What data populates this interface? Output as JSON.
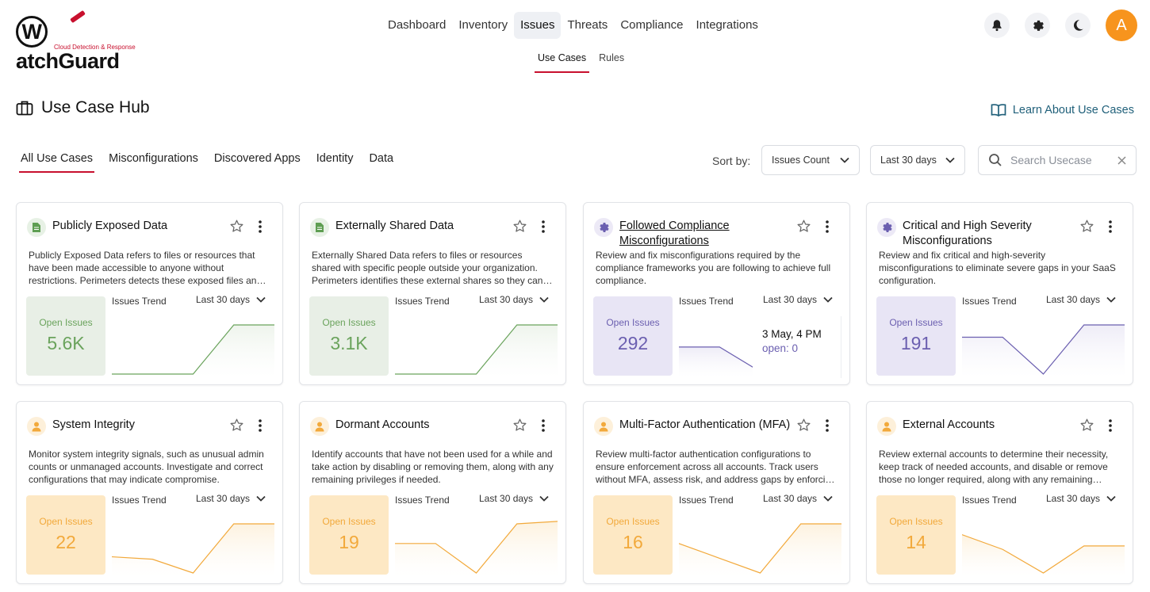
{
  "brand": {
    "name": "WatchGuard",
    "letter": "W",
    "rest": "atchGuard",
    "tagline": "Cloud Detection & Response"
  },
  "topnav": [
    {
      "label": "Dashboard",
      "active": false
    },
    {
      "label": "Inventory",
      "active": false
    },
    {
      "label": "Issues",
      "active": true
    },
    {
      "label": "Threats",
      "active": false
    },
    {
      "label": "Compliance",
      "active": false
    },
    {
      "label": "Integrations",
      "active": false
    }
  ],
  "header_icons": [
    "bell-icon",
    "gear-icon",
    "moon-icon"
  ],
  "user": {
    "avatar_initial": "A",
    "avatar_color": "#f7941d"
  },
  "subnav": [
    {
      "label": "Use Cases",
      "active": true
    },
    {
      "label": "Rules",
      "active": false
    }
  ],
  "page": {
    "title": "Use Case Hub",
    "learn_link": "Learn About Use Cases"
  },
  "tabs": [
    {
      "label": "All Use Cases",
      "active": true
    },
    {
      "label": "Misconfigurations",
      "active": false
    },
    {
      "label": "Discovered Apps",
      "active": false
    },
    {
      "label": "Identity",
      "active": false
    },
    {
      "label": "Data",
      "active": false
    }
  ],
  "filters": {
    "sort_label": "Sort by:",
    "sort_value": "Issues Count",
    "range_value": "Last 30 days",
    "search_placeholder": "Search Usecase"
  },
  "colors": {
    "accent": "#c8102e",
    "data_theme": {
      "bg": "#e8efe6",
      "text": "#6aa35c",
      "line": "#6aa35c",
      "fill": "#eef4ec",
      "icon": "#5e9e52",
      "icon_bg": "#e7f1e5"
    },
    "misconfig_theme": {
      "bg": "#e8e5f5",
      "text": "#6b5fb0",
      "line": "#6b5fb0",
      "fill": "#eeecf7",
      "icon": "#6b5fb0",
      "icon_bg": "#ece9f6"
    },
    "identity_theme": {
      "bg": "#fde8c4",
      "text": "#f2a93b",
      "line": "#f2a93b",
      "fill": "#fdf2df",
      "icon": "#f2a93b",
      "icon_bg": "#fdf0da"
    }
  },
  "cards": [
    {
      "title": "Publicly Exposed Data",
      "icon": "document-icon",
      "theme": "data_theme",
      "link": false,
      "description": "Publicly Exposed Data refers to files or resources that have been made accessible to anyone without restrictions. Perimeters detects these exposed files and helps you remediate them.",
      "open_label": "Open Issues",
      "open_value": "5.6K",
      "trend_label": "Issues Trend",
      "trend_range": "Last 30 days",
      "trend": [
        0.0,
        0.0,
        0.0,
        1.0,
        1.0
      ]
    },
    {
      "title": "Externally Shared Data",
      "icon": "document-icon",
      "theme": "data_theme",
      "link": false,
      "description": "Externally Shared Data refers to files or resources shared with specific people outside your organization. Perimeters identifies these external shares so they can be reviewed.",
      "open_label": "Open Issues",
      "open_value": "3.1K",
      "trend_label": "Issues Trend",
      "trend_range": "Last 30 days",
      "trend": [
        0.0,
        0.0,
        0.0,
        1.0,
        1.0
      ]
    },
    {
      "title": "Followed Compliance Misconfigurations",
      "icon": "gear-icon",
      "theme": "misconfig_theme",
      "link": true,
      "description": "Review and fix misconfigurations required by the compliance frameworks you are following to achieve full compliance.",
      "open_label": "Open Issues",
      "open_value": "292",
      "trend_label": "Issues Trend",
      "trend_range": "Last 30 days",
      "trend": [
        0.55,
        0.55,
        0.05,
        0.0,
        0.15
      ],
      "tooltip": {
        "date": "3 May, 4 PM",
        "label": "open: 0"
      }
    },
    {
      "title": "Critical and High Severity Misconfigurations",
      "icon": "gear-icon",
      "theme": "misconfig_theme",
      "link": false,
      "description": "Review and fix critical and high-severity misconfigurations to eliminate severe gaps in your SaaS configuration.",
      "open_label": "Open Issues",
      "open_value": "191",
      "trend_label": "Issues Trend",
      "trend_range": "Last 30 days",
      "trend": [
        0.75,
        0.75,
        0.0,
        1.0,
        1.0
      ]
    },
    {
      "title": "System Integrity",
      "icon": "user-icon",
      "theme": "identity_theme",
      "link": false,
      "description": "Monitor system integrity signals, such as unusual admin counts or unmanaged accounts. Investigate and correct configurations that may indicate compromise.",
      "open_label": "Open Issues",
      "open_value": "22",
      "trend_label": "Issues Trend",
      "trend_range": "Last 30 days",
      "trend": [
        0.33,
        0.28,
        0.0,
        1.0,
        1.0
      ]
    },
    {
      "title": "Dormant Accounts",
      "icon": "user-icon",
      "theme": "identity_theme",
      "link": false,
      "description": "Identify accounts that have not been used for a while and take action by disabling or removing them, along with any remaining privileges if needed.",
      "open_label": "Open Issues",
      "open_value": "19",
      "trend_label": "Issues Trend",
      "trend_range": "Last 30 days",
      "trend": [
        0.6,
        0.6,
        0.0,
        1.0,
        1.05
      ]
    },
    {
      "title": "Multi-Factor Authentication (MFA)",
      "icon": "user-icon",
      "theme": "identity_theme",
      "link": false,
      "description": "Review multi-factor authentication configurations to ensure enforcement across all accounts. Track users without MFA, assess risk, and address gaps by enforcing MFA.",
      "open_label": "Open Issues",
      "open_value": "16",
      "trend_label": "Issues Trend",
      "trend_range": "Last 30 days",
      "trend": [
        0.6,
        0.3,
        0.0,
        1.0,
        1.0
      ]
    },
    {
      "title": "External Accounts",
      "icon": "user-icon",
      "theme": "identity_theme",
      "link": false,
      "description": "Review external accounts to determine their necessity, keep track of needed accounts, and disable or remove those no longer required, along with any remaining privileges.",
      "open_label": "Open Issues",
      "open_value": "14",
      "trend_label": "Issues Trend",
      "trend_range": "Last 30 days",
      "trend": [
        0.78,
        0.48,
        0.0,
        0.55,
        0.55
      ]
    }
  ]
}
